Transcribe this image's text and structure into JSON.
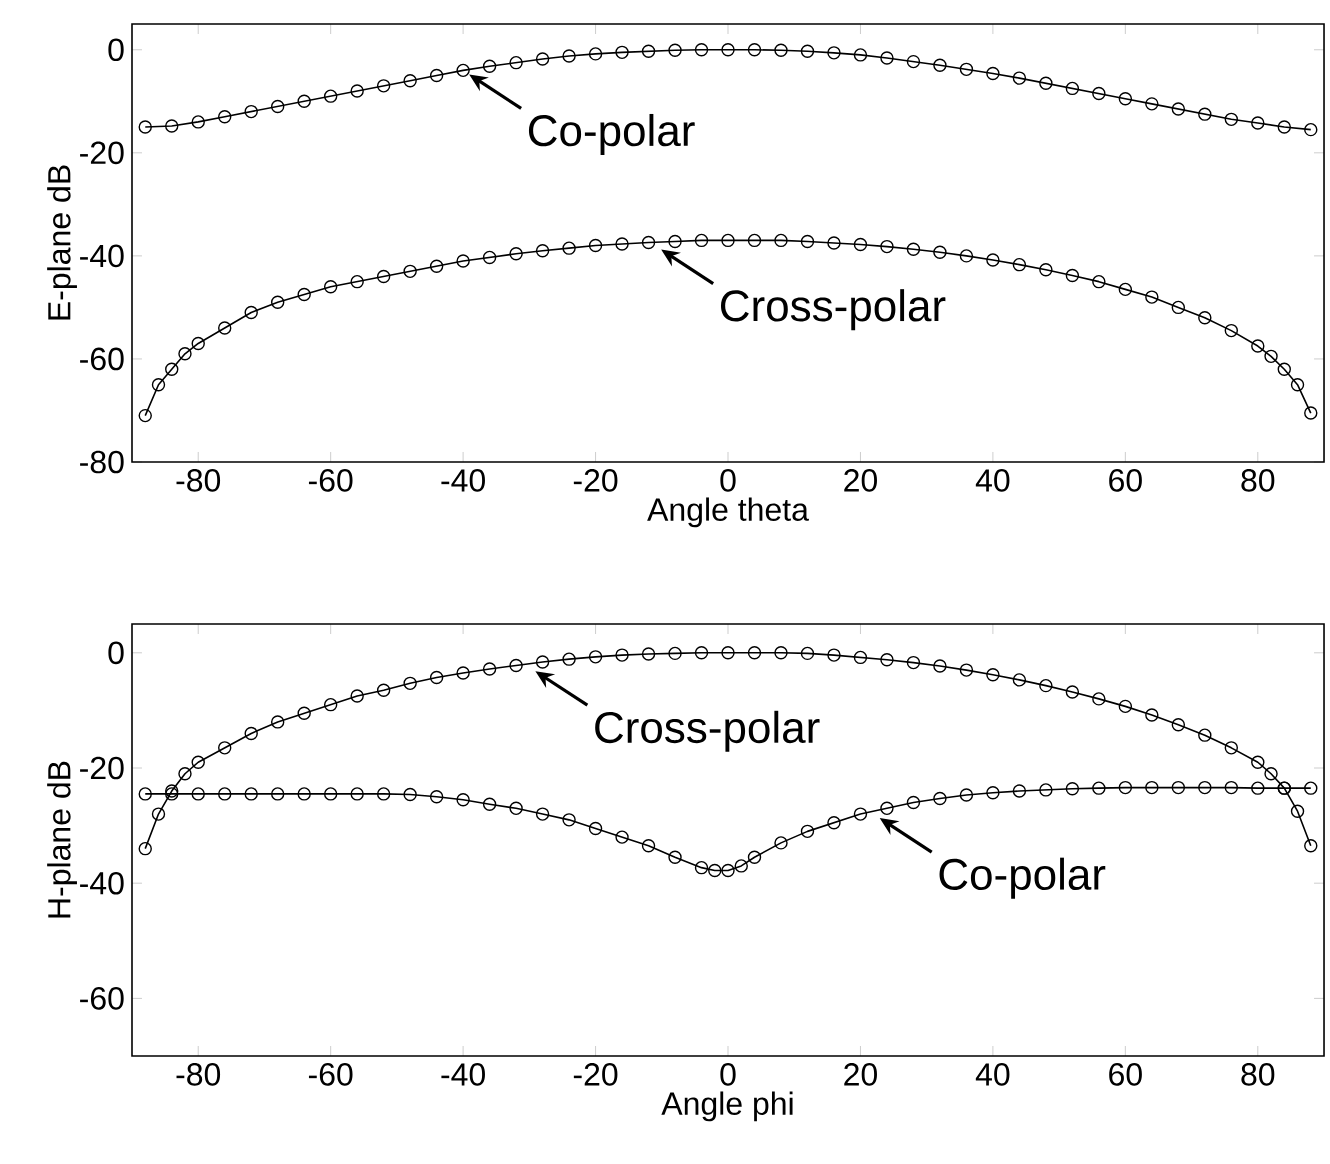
{
  "chart_data": [
    {
      "type": "line",
      "xlabel": "Angle theta",
      "ylabel": "E-plane dB",
      "xlim": [
        -90,
        90
      ],
      "ylim": [
        -80,
        5
      ],
      "xticks": [
        -80,
        -60,
        -40,
        -20,
        0,
        20,
        40,
        60,
        80
      ],
      "yticks": [
        -80,
        -60,
        -40,
        -20,
        0
      ],
      "marker": "circle",
      "series": [
        {
          "color": "#000000",
          "x": [
            -88,
            -84,
            -80,
            -76,
            -72,
            -68,
            -64,
            -60,
            -56,
            -52,
            -48,
            -44,
            -40,
            -36,
            -32,
            -28,
            -24,
            -20,
            -16,
            -12,
            -8,
            -4,
            0,
            4,
            8,
            12,
            16,
            20,
            24,
            28,
            32,
            36,
            40,
            44,
            48,
            52,
            56,
            60,
            64,
            68,
            72,
            76,
            80,
            84,
            88
          ],
          "values": [
            -15,
            -14.8,
            -14,
            -13,
            -12,
            -11,
            -10,
            -9,
            -8,
            -7,
            -6,
            -5,
            -4,
            -3.2,
            -2.5,
            -1.8,
            -1.2,
            -0.8,
            -0.5,
            -0.3,
            -0.1,
            0,
            0,
            0,
            -0.1,
            -0.3,
            -0.6,
            -1,
            -1.6,
            -2.3,
            -3,
            -3.8,
            -4.6,
            -5.5,
            -6.5,
            -7.5,
            -8.5,
            -9.5,
            -10.5,
            -11.5,
            -12.5,
            -13.5,
            -14.2,
            -15,
            -15.5
          ]
        },
        {
          "color": "#000000",
          "x": [
            -88,
            -86,
            -84,
            -82,
            -80,
            -76,
            -72,
            -68,
            -64,
            -60,
            -56,
            -52,
            -48,
            -44,
            -40,
            -36,
            -32,
            -28,
            -24,
            -20,
            -16,
            -12,
            -8,
            -4,
            0,
            4,
            8,
            12,
            16,
            20,
            24,
            28,
            32,
            36,
            40,
            44,
            48,
            52,
            56,
            60,
            64,
            68,
            72,
            76,
            80,
            82,
            84,
            86,
            88
          ],
          "values": [
            -71,
            -65,
            -62,
            -59,
            -57,
            -54,
            -51,
            -49,
            -47.5,
            -46,
            -45,
            -44,
            -43,
            -42,
            -41,
            -40.3,
            -39.6,
            -39,
            -38.5,
            -38,
            -37.7,
            -37.4,
            -37.2,
            -37,
            -37,
            -37,
            -37,
            -37.2,
            -37.5,
            -37.8,
            -38.2,
            -38.7,
            -39.3,
            -40,
            -40.8,
            -41.7,
            -42.7,
            -43.8,
            -45,
            -46.5,
            -48,
            -50,
            -52,
            -54.5,
            -57.5,
            -59.5,
            -62,
            -65,
            -70.5
          ]
        }
      ],
      "annotations": [
        {
          "text": "Co-polar",
          "x": -40,
          "y": -4
        },
        {
          "text": "Cross-polar",
          "x": -11,
          "y": -38
        }
      ]
    },
    {
      "type": "line",
      "xlabel": "Angle phi",
      "ylabel": "H-plane dB",
      "xlim": [
        -90,
        90
      ],
      "ylim": [
        -70,
        5
      ],
      "xticks": [
        -80,
        -60,
        -40,
        -20,
        0,
        20,
        40,
        60,
        80
      ],
      "yticks": [
        -60,
        -40,
        -20,
        0
      ],
      "marker": "circle",
      "series": [
        {
          "color": "#000000",
          "x": [
            -88,
            -86,
            -84,
            -82,
            -80,
            -76,
            -72,
            -68,
            -64,
            -60,
            -56,
            -52,
            -48,
            -44,
            -40,
            -36,
            -32,
            -28,
            -24,
            -20,
            -16,
            -12,
            -8,
            -4,
            0,
            4,
            8,
            12,
            16,
            20,
            24,
            28,
            32,
            36,
            40,
            44,
            48,
            52,
            56,
            60,
            64,
            68,
            72,
            76,
            80,
            82,
            84,
            86,
            88
          ],
          "values": [
            -34,
            -28,
            -24,
            -21,
            -19,
            -16.5,
            -14,
            -12,
            -10.5,
            -9,
            -7.5,
            -6.5,
            -5.3,
            -4.3,
            -3.5,
            -2.8,
            -2.2,
            -1.6,
            -1.1,
            -0.7,
            -0.4,
            -0.2,
            -0.1,
            0,
            0,
            0,
            0,
            -0.1,
            -0.4,
            -0.8,
            -1.2,
            -1.7,
            -2.3,
            -3,
            -3.8,
            -4.7,
            -5.7,
            -6.8,
            -8,
            -9.3,
            -10.8,
            -12.5,
            -14.3,
            -16.5,
            -19,
            -21,
            -23.5,
            -27.5,
            -33.5
          ]
        },
        {
          "color": "#000000",
          "x": [
            -88,
            -84,
            -80,
            -76,
            -72,
            -68,
            -64,
            -60,
            -56,
            -52,
            -48,
            -44,
            -40,
            -36,
            -32,
            -28,
            -24,
            -20,
            -16,
            -12,
            -8,
            -4,
            -2,
            0,
            2,
            4,
            8,
            12,
            16,
            20,
            24,
            28,
            32,
            36,
            40,
            44,
            48,
            52,
            56,
            60,
            64,
            68,
            72,
            76,
            80,
            84,
            88
          ],
          "values": [
            -24.5,
            -24.5,
            -24.5,
            -24.5,
            -24.5,
            -24.5,
            -24.5,
            -24.5,
            -24.5,
            -24.5,
            -24.6,
            -25,
            -25.5,
            -26.3,
            -27,
            -28,
            -29,
            -30.5,
            -32,
            -33.5,
            -35.5,
            -37.3,
            -37.8,
            -37.8,
            -37,
            -35.5,
            -33,
            -31,
            -29.5,
            -28,
            -27,
            -26,
            -25.3,
            -24.7,
            -24.3,
            -24,
            -23.8,
            -23.6,
            -23.5,
            -23.4,
            -23.4,
            -23.4,
            -23.4,
            -23.4,
            -23.5,
            -23.5,
            -23.5
          ]
        }
      ],
      "annotations": [
        {
          "text": "Cross-polar",
          "x": -30,
          "y": -2.5
        },
        {
          "text": "Co-polar",
          "x": 22,
          "y": -28
        }
      ]
    }
  ]
}
